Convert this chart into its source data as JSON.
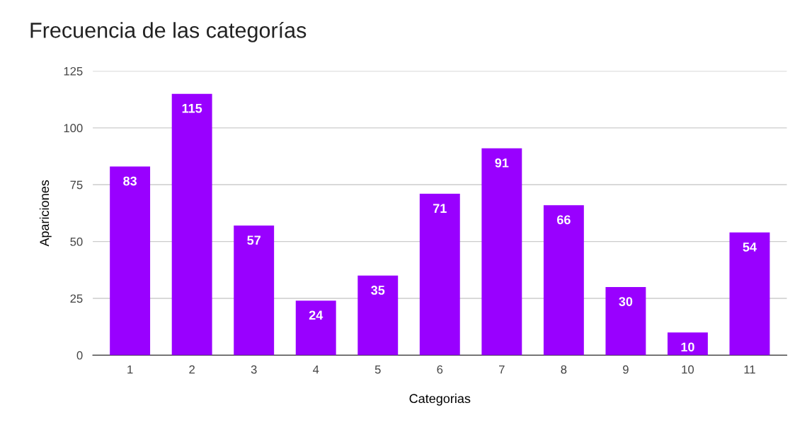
{
  "chart_data": {
    "type": "bar",
    "title": "Frecuencia de las categorías",
    "xlabel": "Categorias",
    "ylabel": "Apariciones",
    "categories": [
      "1",
      "2",
      "3",
      "4",
      "5",
      "6",
      "7",
      "8",
      "9",
      "10",
      "11"
    ],
    "values": [
      83,
      115,
      57,
      24,
      35,
      71,
      91,
      66,
      30,
      10,
      54
    ],
    "color": "#9900ff",
    "ylim": [
      0,
      125
    ],
    "yticks": [
      0,
      25,
      50,
      75,
      100,
      125
    ],
    "grid": "y",
    "data_labels": true
  }
}
